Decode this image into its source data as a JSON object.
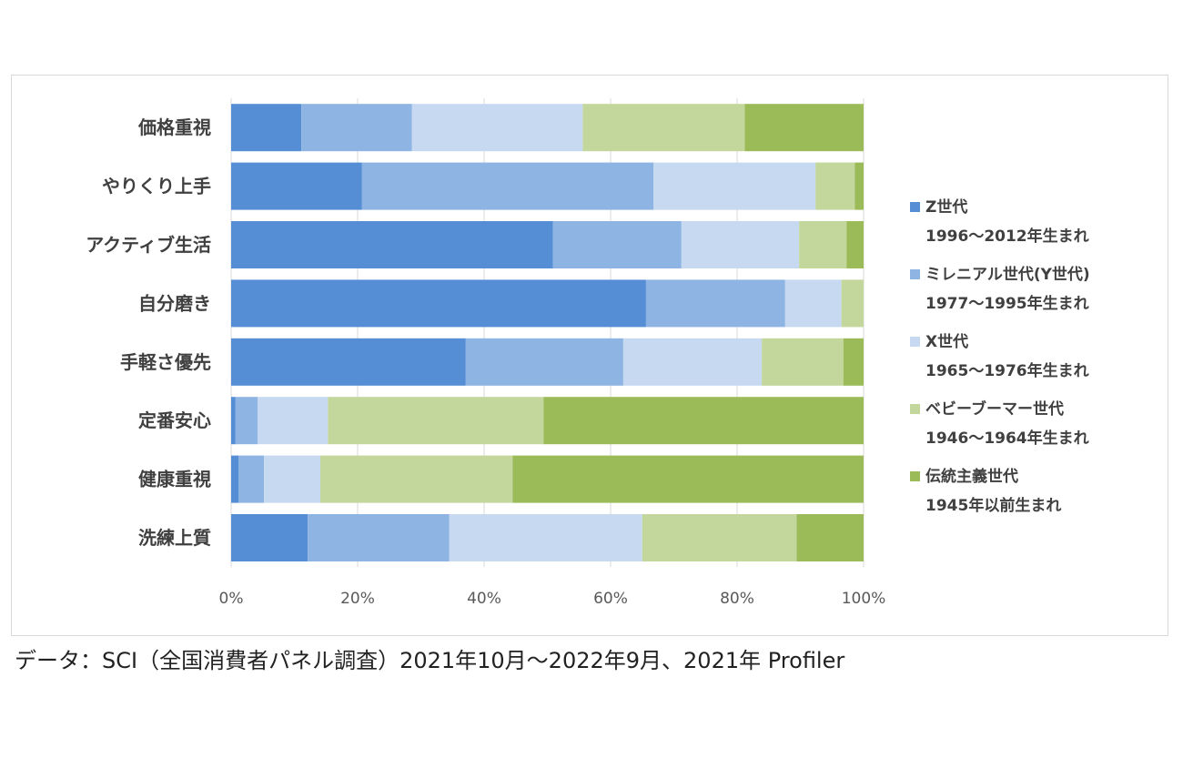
{
  "chart_data": {
    "type": "bar",
    "orientation": "horizontal",
    "stacked": "percent",
    "categories": [
      "価格重視",
      "やりくり上手",
      "アクティブ生活",
      "自分磨き",
      "手軽さ優先",
      "定番安心",
      "健康重視",
      "洗練上質"
    ],
    "series": [
      {
        "name": "Z世代",
        "sub": "1996〜2012年生まれ",
        "color": "#558ED5",
        "values": [
          11.1,
          20.7,
          50.9,
          65.6,
          37.1,
          0.7,
          1.2,
          12.1
        ]
      },
      {
        "name": "ミレニアル世代(Y世代)",
        "sub": "1977〜1995年生まれ",
        "color": "#8EB4E3",
        "values": [
          17.5,
          46.1,
          20.3,
          22.0,
          24.9,
          3.5,
          4.0,
          22.4
        ]
      },
      {
        "name": "X世代",
        "sub": "1965〜1976年生まれ",
        "color": "#C6D9F1",
        "values": [
          27.0,
          25.6,
          18.6,
          8.9,
          21.9,
          11.1,
          8.9,
          30.5
        ]
      },
      {
        "name": "ベビーブーマー世代",
        "sub": "1946〜1964年生まれ",
        "color": "#C3D69B",
        "values": [
          25.6,
          6.2,
          7.5,
          3.5,
          12.9,
          34.1,
          30.4,
          24.4
        ]
      },
      {
        "name": "伝統主義世代",
        "sub": "1945年以前生まれ",
        "color": "#9BBB59",
        "values": [
          18.8,
          1.4,
          2.7,
          0.0,
          3.2,
          50.6,
          55.5,
          10.6
        ]
      }
    ],
    "xticks": [
      "0%",
      "20%",
      "40%",
      "60%",
      "80%",
      "100%"
    ],
    "xlim": [
      0,
      100
    ],
    "grid": true,
    "legend": "right"
  },
  "caption": "データ：SCI（全国消費者パネル調査）2021年10月〜2022年9月、2021年 Profiler"
}
